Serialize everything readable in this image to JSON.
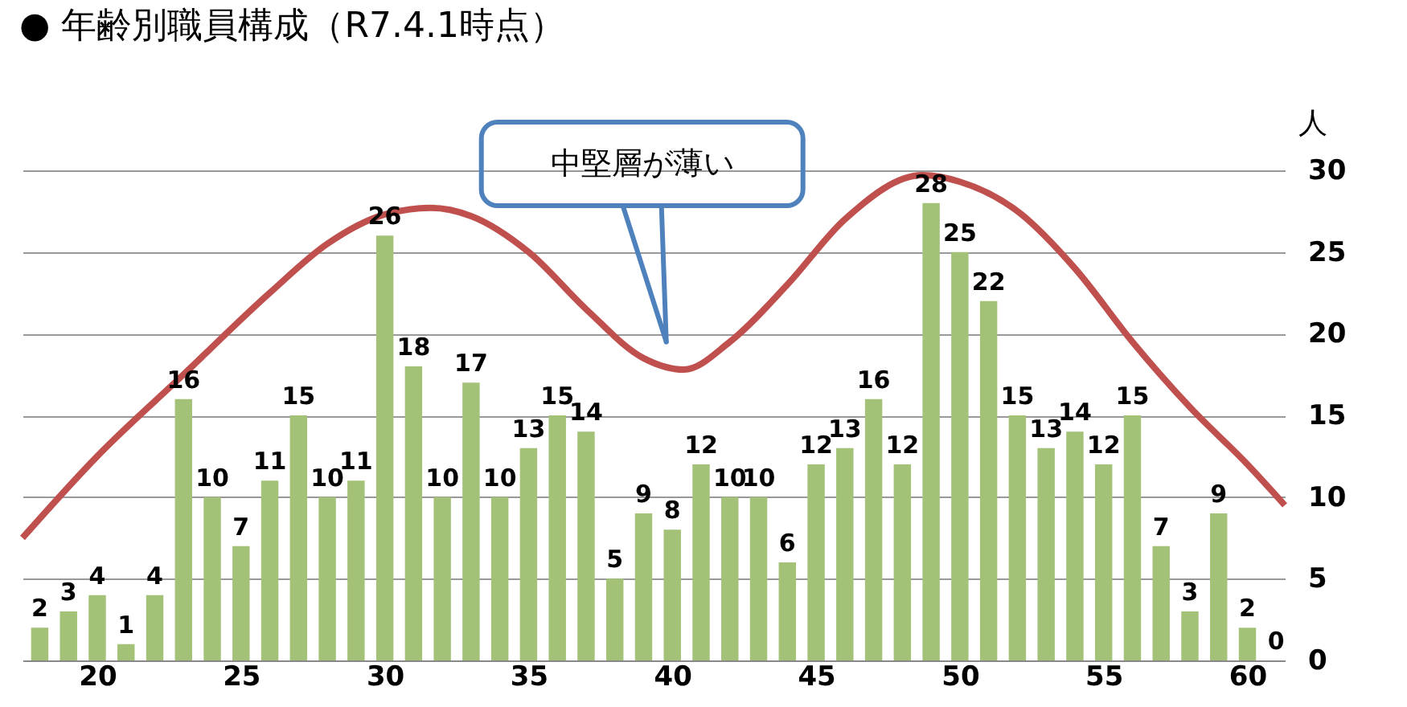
{
  "chart_data": {
    "type": "bar",
    "title": "● 年齢別職員構成（R7.4.1時点）",
    "ylabel": "人",
    "x": [
      18,
      19,
      20,
      21,
      22,
      23,
      24,
      25,
      26,
      27,
      28,
      29,
      30,
      31,
      32,
      33,
      34,
      35,
      36,
      37,
      38,
      39,
      40,
      41,
      42,
      43,
      44,
      45,
      46,
      47,
      48,
      49,
      50,
      51,
      52,
      53,
      54,
      55,
      56,
      57,
      58,
      59,
      60,
      61
    ],
    "series": [
      {
        "color": "#a3c278",
        "values": [
          2,
          3,
          4,
          1,
          4,
          16,
          10,
          7,
          11,
          15,
          10,
          11,
          26,
          18,
          10,
          17,
          10,
          13,
          15,
          14,
          5,
          9,
          8,
          12,
          10,
          10,
          6,
          12,
          13,
          16,
          12,
          28,
          25,
          22,
          15,
          13,
          14,
          12,
          15,
          7,
          3,
          9,
          2,
          0
        ],
        "value_labels": [
          "2",
          "3",
          "4",
          "1",
          "4",
          "16",
          "10",
          "7",
          "11",
          "15",
          "10",
          "11",
          "26",
          "18",
          "10",
          "17",
          "10",
          "13",
          "15",
          "14",
          "5",
          "9",
          "8",
          "12",
          "10",
          "10",
          "6",
          "12",
          "13",
          "16",
          "12",
          "28",
          "25",
          "22",
          "15",
          "13",
          "14",
          "12",
          "15",
          "7",
          "3",
          "9",
          "2",
          "0"
        ]
      },
      {
        "type": "line",
        "color": "#c0504d",
        "x": [
          17.4,
          20,
          23,
          26,
          28,
          30,
          31.6,
          33,
          35,
          37,
          39,
          40.4,
          42,
          44,
          46,
          48.7,
          50,
          52,
          54,
          56,
          58,
          60,
          61.3
        ],
        "values": [
          7.5,
          12.5,
          17.5,
          22.5,
          25.5,
          27.3,
          27.7,
          27.2,
          25,
          21.5,
          18.5,
          17.8,
          19.5,
          23,
          27,
          29.7,
          29.3,
          27.5,
          24,
          19.5,
          15.5,
          12,
          9.5
        ]
      }
    ],
    "annotations": [
      "中堅層が薄い"
    ],
    "xlim": [
      17.4,
      61.3
    ],
    "xticks": [
      20,
      25,
      30,
      35,
      40,
      45,
      50,
      55,
      60
    ],
    "ylim": [
      0,
      30
    ],
    "yticks": [
      0,
      5,
      10,
      15,
      20,
      25,
      30
    ],
    "grid": "y"
  }
}
